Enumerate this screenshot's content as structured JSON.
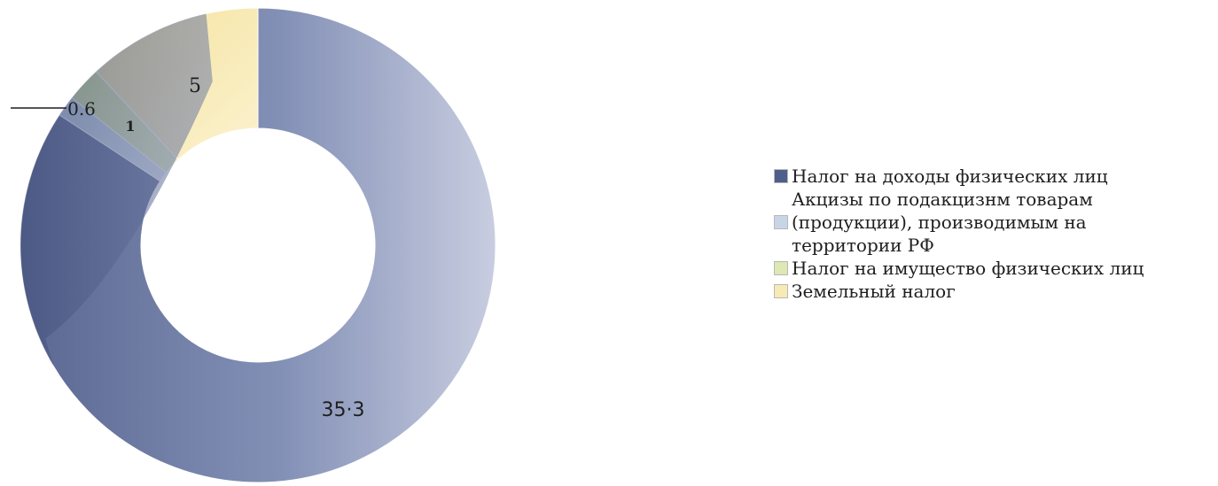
{
  "chart_data": {
    "type": "pie",
    "donut": true,
    "categories": [
      "Налог на доходы физических лиц",
      "Акцизы по подакцизнм товарам\n(продукции), производимым на\nтерритории РФ",
      "Налог на имущество физических лиц",
      "Земельный налог"
    ],
    "values": [
      35.3,
      0.6,
      1,
      5
    ],
    "label_texts": [
      "35·3",
      "0.6",
      "1",
      "5"
    ],
    "colors": [
      "#7a86ad",
      "#c7d6e7",
      "#dde8b2",
      "#f8eab4"
    ],
    "legend_placement": "right"
  }
}
